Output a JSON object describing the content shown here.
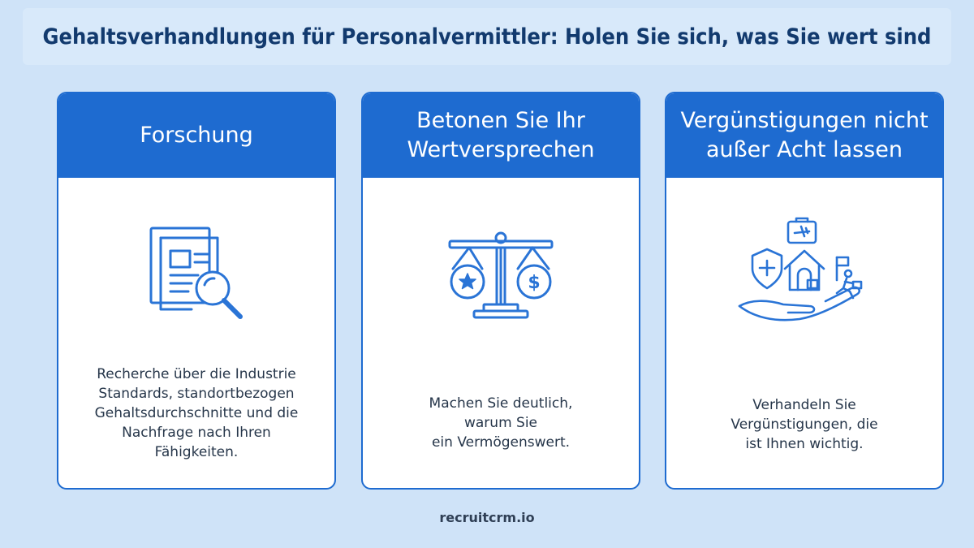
{
  "title": "Gehaltsverhandlungen für Personalvermittler: Holen Sie sich, was Sie wert sind",
  "cards": [
    {
      "heading": "Forschung",
      "icon": "document-search-icon",
      "text": "Recherche über die Industrie\nStandards, standortbezogen\nGehaltsdurchschnitte und die\nNachfrage nach Ihren\nFähigkeiten."
    },
    {
      "heading": "Betonen Sie Ihr\nWertversprechen",
      "icon": "balance-scale-icon",
      "text": "Machen Sie deutlich,\nwarum Sie\nein Vermögenswert."
    },
    {
      "heading": "Vergünstigungen nicht\naußer Acht lassen",
      "icon": "benefits-hand-icon",
      "text": "Verhandeln Sie\nVergünstigungen, die\nist Ihnen wichtig."
    }
  ],
  "footer": "recruitcrm.io",
  "colors": {
    "background": "#cfe3f8",
    "accent": "#1e6bd0",
    "title": "#123a6e",
    "icon_stroke": "#2a74d6"
  }
}
